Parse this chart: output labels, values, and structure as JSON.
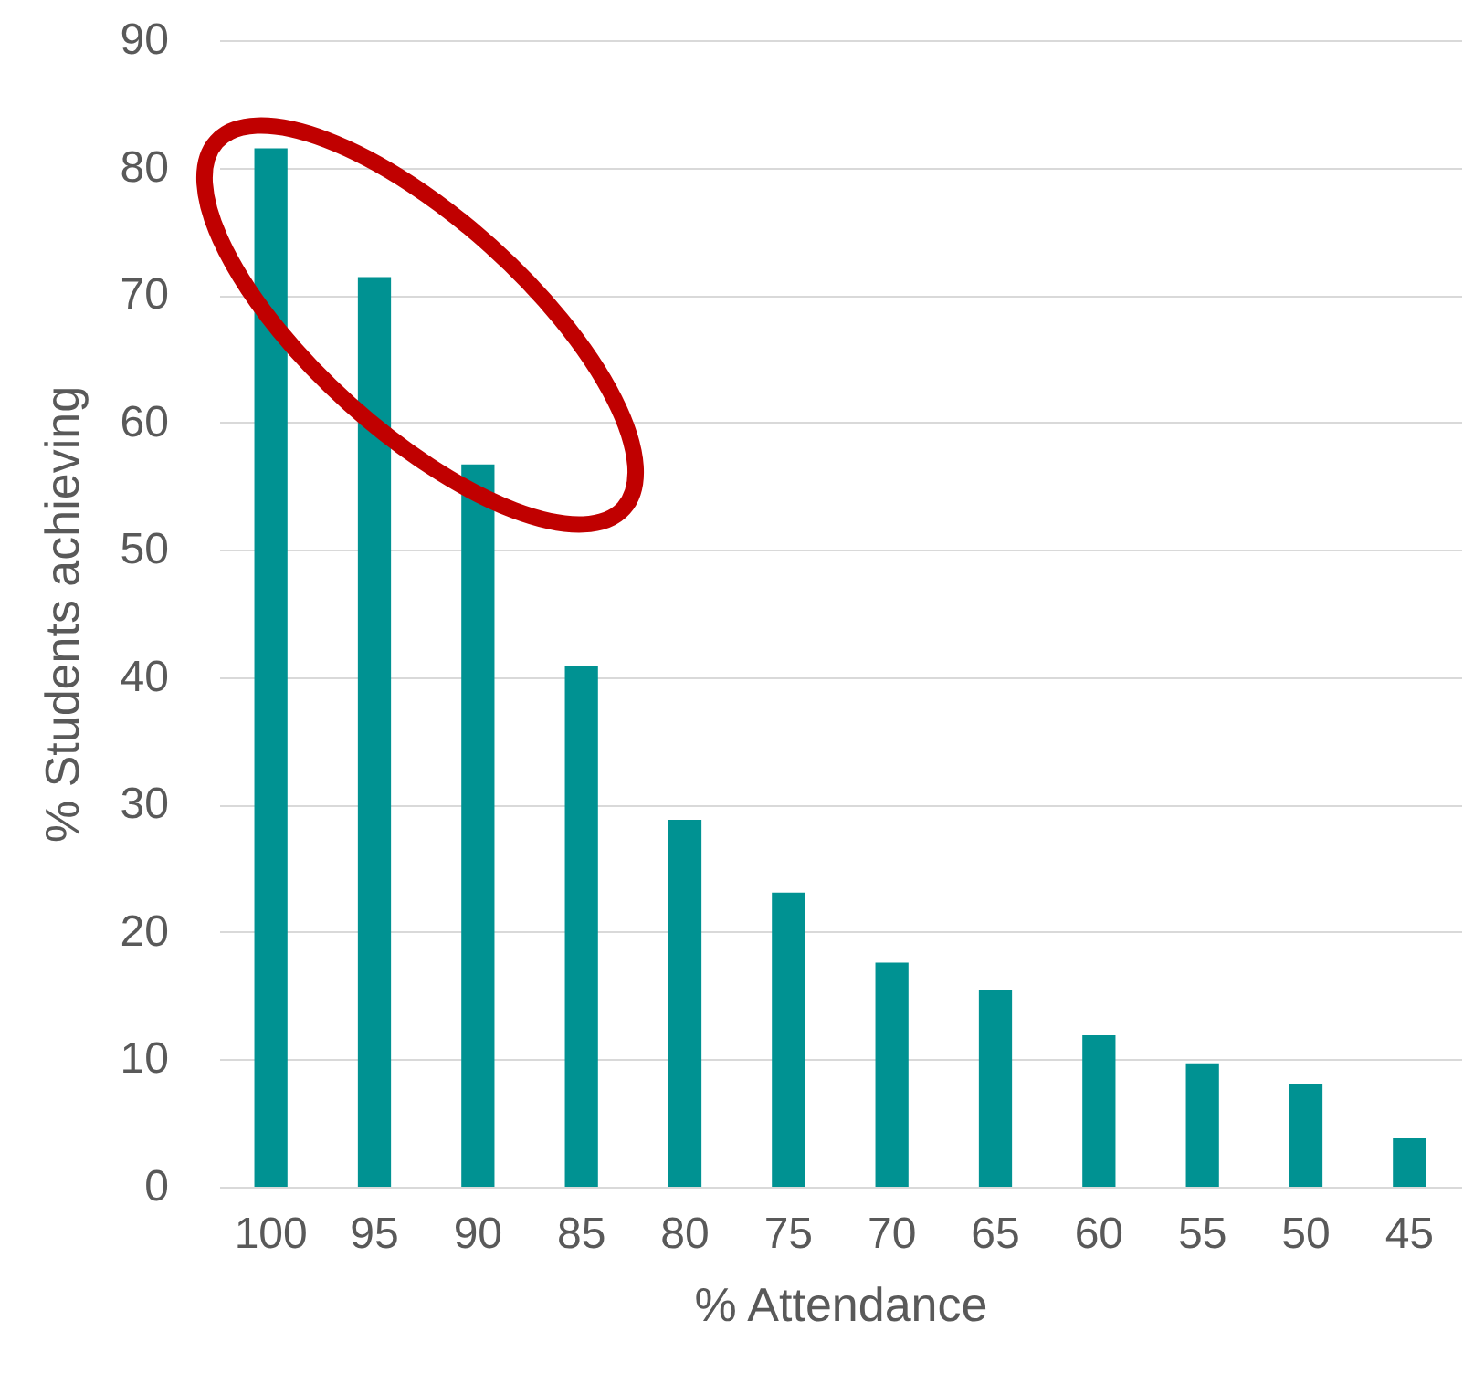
{
  "chart_data": {
    "type": "bar",
    "xlabel": "% Attendance",
    "ylabel": "% Students achieving",
    "categories": [
      "100",
      "95",
      "90",
      "85",
      "80",
      "75",
      "70",
      "65",
      "60",
      "55",
      "50",
      "45"
    ],
    "values": [
      81.5,
      71.4,
      56.7,
      40.9,
      28.8,
      23.1,
      17.6,
      15.4,
      11.9,
      9.7,
      8.1,
      3.8
    ],
    "color": "#009292",
    "ylim": [
      0,
      90
    ],
    "yticks": [
      0,
      10,
      20,
      30,
      40,
      50,
      60,
      70,
      80,
      90
    ],
    "grid": "y"
  }
}
